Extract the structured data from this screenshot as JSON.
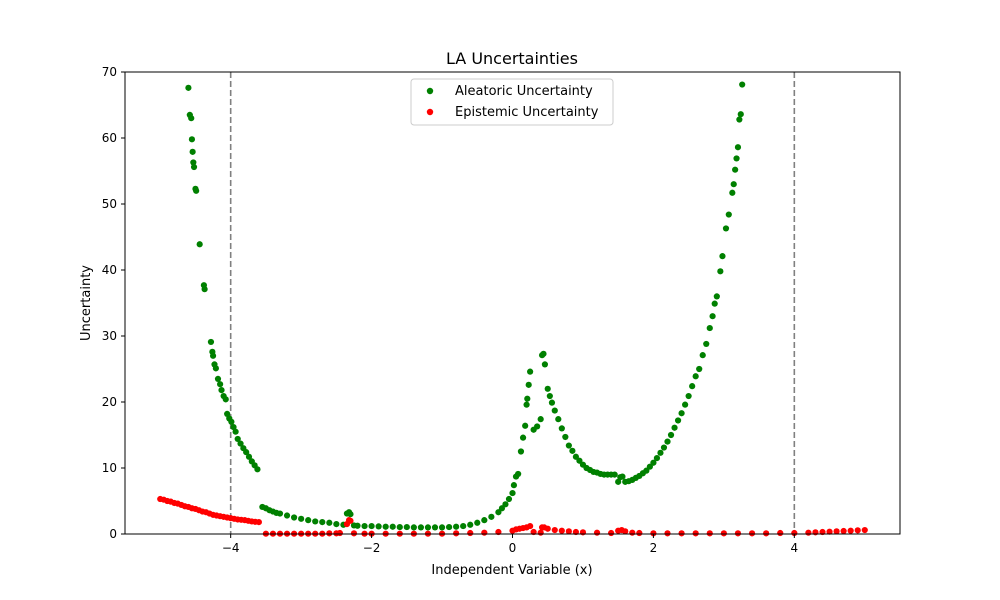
{
  "chart_data": {
    "type": "scatter",
    "title": "LA Uncertainties",
    "xlabel": "Independent Variable (x)",
    "ylabel": "Uncertainty",
    "xlim": [
      -5.5,
      5.5
    ],
    "ylim": [
      0,
      70
    ],
    "xticks": [
      -4,
      -2,
      0,
      2,
      4
    ],
    "xtick_labels": [
      "−4",
      "−2",
      "0",
      "2",
      "4"
    ],
    "yticks": [
      0,
      10,
      20,
      30,
      40,
      50,
      60,
      70
    ],
    "ytick_labels": [
      "0",
      "10",
      "20",
      "30",
      "40",
      "50",
      "60",
      "70"
    ],
    "vlines": [
      -4,
      4
    ],
    "grid": false,
    "legend_position": "top-center",
    "series": [
      {
        "name": "Aleatoric Uncertainty",
        "color": "#008000",
        "points": [
          [
            -4.6,
            67.6
          ],
          [
            -4.58,
            63.5
          ],
          [
            -4.56,
            63.0
          ],
          [
            -4.55,
            59.8
          ],
          [
            -4.54,
            57.9
          ],
          [
            -4.53,
            56.3
          ],
          [
            -4.52,
            55.6
          ],
          [
            -4.5,
            52.3
          ],
          [
            -4.49,
            52.0
          ],
          [
            -4.44,
            43.9
          ],
          [
            -4.38,
            37.7
          ],
          [
            -4.37,
            37.1
          ],
          [
            -4.28,
            29.1
          ],
          [
            -4.26,
            27.6
          ],
          [
            -4.25,
            27.0
          ],
          [
            -4.23,
            25.7
          ],
          [
            -4.21,
            25.1
          ],
          [
            -4.18,
            23.5
          ],
          [
            -4.15,
            22.7
          ],
          [
            -4.13,
            21.8
          ],
          [
            -4.1,
            20.9
          ],
          [
            -4.07,
            20.4
          ],
          [
            -4.05,
            18.2
          ],
          [
            -4.02,
            17.5
          ],
          [
            -3.99,
            17.0
          ],
          [
            -3.96,
            16.2
          ],
          [
            -3.93,
            15.5
          ],
          [
            -3.9,
            14.4
          ],
          [
            -3.86,
            13.7
          ],
          [
            -3.82,
            13.0
          ],
          [
            -3.78,
            12.4
          ],
          [
            -3.74,
            11.7
          ],
          [
            -3.7,
            11.0
          ],
          [
            -3.66,
            10.4
          ],
          [
            -3.62,
            9.8
          ],
          [
            -3.55,
            4.1
          ],
          [
            -3.5,
            3.9
          ],
          [
            -3.45,
            3.6
          ],
          [
            -3.4,
            3.4
          ],
          [
            -3.35,
            3.2
          ],
          [
            -3.3,
            3.1
          ],
          [
            -3.2,
            2.8
          ],
          [
            -3.1,
            2.5
          ],
          [
            -3.0,
            2.3
          ],
          [
            -2.9,
            2.1
          ],
          [
            -2.8,
            1.9
          ],
          [
            -2.7,
            1.8
          ],
          [
            -2.6,
            1.7
          ],
          [
            -2.5,
            1.5
          ],
          [
            -2.4,
            1.4
          ],
          [
            -2.35,
            3.1
          ],
          [
            -2.32,
            3.3
          ],
          [
            -2.3,
            3.0
          ],
          [
            -2.25,
            1.3
          ],
          [
            -2.2,
            1.25
          ],
          [
            -2.1,
            1.2
          ],
          [
            -2.0,
            1.2
          ],
          [
            -1.9,
            1.15
          ],
          [
            -1.8,
            1.1
          ],
          [
            -1.7,
            1.1
          ],
          [
            -1.6,
            1.05
          ],
          [
            -1.5,
            1.05
          ],
          [
            -1.4,
            1.0
          ],
          [
            -1.3,
            1.0
          ],
          [
            -1.2,
            1.0
          ],
          [
            -1.1,
            1.0
          ],
          [
            -1.0,
            1.0
          ],
          [
            -0.9,
            1.05
          ],
          [
            -0.8,
            1.1
          ],
          [
            -0.7,
            1.2
          ],
          [
            -0.6,
            1.4
          ],
          [
            -0.5,
            1.7
          ],
          [
            -0.4,
            2.1
          ],
          [
            -0.3,
            2.6
          ],
          [
            -0.2,
            3.3
          ],
          [
            -0.15,
            3.9
          ],
          [
            -0.1,
            4.5
          ],
          [
            -0.05,
            5.3
          ],
          [
            0.0,
            6.2
          ],
          [
            0.02,
            7.4
          ],
          [
            0.05,
            8.7
          ],
          [
            0.08,
            9.1
          ],
          [
            0.12,
            12.5
          ],
          [
            0.15,
            14.6
          ],
          [
            0.18,
            16.4
          ],
          [
            0.2,
            19.6
          ],
          [
            0.21,
            20.5
          ],
          [
            0.23,
            22.6
          ],
          [
            0.25,
            24.6
          ],
          [
            0.3,
            15.8
          ],
          [
            0.35,
            16.3
          ],
          [
            0.4,
            17.4
          ],
          [
            0.42,
            27.1
          ],
          [
            0.44,
            27.3
          ],
          [
            0.46,
            25.7
          ],
          [
            0.5,
            22.0
          ],
          [
            0.53,
            20.9
          ],
          [
            0.56,
            19.9
          ],
          [
            0.6,
            18.7
          ],
          [
            0.65,
            17.4
          ],
          [
            0.7,
            16.0
          ],
          [
            0.75,
            14.7
          ],
          [
            0.8,
            13.4
          ],
          [
            0.85,
            12.6
          ],
          [
            0.9,
            11.7
          ],
          [
            0.95,
            11.1
          ],
          [
            1.0,
            10.5
          ],
          [
            1.05,
            10.0
          ],
          [
            1.1,
            9.7
          ],
          [
            1.15,
            9.4
          ],
          [
            1.2,
            9.3
          ],
          [
            1.25,
            9.1
          ],
          [
            1.3,
            9.0
          ],
          [
            1.35,
            9.0
          ],
          [
            1.4,
            9.0
          ],
          [
            1.45,
            9.0
          ],
          [
            1.5,
            7.9
          ],
          [
            1.53,
            8.6
          ],
          [
            1.56,
            8.7
          ],
          [
            1.6,
            7.9
          ],
          [
            1.65,
            8.0
          ],
          [
            1.7,
            8.2
          ],
          [
            1.75,
            8.5
          ],
          [
            1.8,
            8.8
          ],
          [
            1.85,
            9.2
          ],
          [
            1.9,
            9.6
          ],
          [
            1.95,
            10.2
          ],
          [
            2.0,
            10.8
          ],
          [
            2.05,
            11.5
          ],
          [
            2.1,
            12.3
          ],
          [
            2.15,
            13.1
          ],
          [
            2.2,
            14.0
          ],
          [
            2.25,
            15.0
          ],
          [
            2.3,
            16.1
          ],
          [
            2.35,
            17.2
          ],
          [
            2.4,
            18.3
          ],
          [
            2.45,
            19.6
          ],
          [
            2.5,
            20.9
          ],
          [
            2.55,
            22.4
          ],
          [
            2.6,
            23.9
          ],
          [
            2.65,
            25.0
          ],
          [
            2.7,
            27.1
          ],
          [
            2.75,
            28.8
          ],
          [
            2.8,
            31.2
          ],
          [
            2.84,
            33.0
          ],
          [
            2.87,
            34.9
          ],
          [
            2.9,
            36.0
          ],
          [
            2.95,
            39.8
          ],
          [
            2.98,
            42.1
          ],
          [
            3.03,
            46.3
          ],
          [
            3.07,
            48.4
          ],
          [
            3.12,
            51.7
          ],
          [
            3.14,
            53.0
          ],
          [
            3.16,
            55.2
          ],
          [
            3.18,
            56.9
          ],
          [
            3.2,
            58.6
          ],
          [
            3.22,
            62.8
          ],
          [
            3.24,
            63.6
          ],
          [
            3.26,
            68.1
          ]
        ]
      },
      {
        "name": "Epistemic Uncertainty",
        "color": "#ff0000",
        "points": [
          [
            -5.0,
            5.3
          ],
          [
            -4.95,
            5.2
          ],
          [
            -4.9,
            5.0
          ],
          [
            -4.85,
            4.9
          ],
          [
            -4.8,
            4.7
          ],
          [
            -4.75,
            4.6
          ],
          [
            -4.7,
            4.4
          ],
          [
            -4.65,
            4.2
          ],
          [
            -4.6,
            4.1
          ],
          [
            -4.55,
            3.9
          ],
          [
            -4.5,
            3.8
          ],
          [
            -4.45,
            3.6
          ],
          [
            -4.4,
            3.4
          ],
          [
            -4.35,
            3.3
          ],
          [
            -4.3,
            3.1
          ],
          [
            -4.25,
            2.9
          ],
          [
            -4.2,
            2.8
          ],
          [
            -4.15,
            2.7
          ],
          [
            -4.1,
            2.6
          ],
          [
            -4.05,
            2.5
          ],
          [
            -4.0,
            2.4
          ],
          [
            -3.95,
            2.3
          ],
          [
            -3.9,
            2.2
          ],
          [
            -3.85,
            2.15
          ],
          [
            -3.8,
            2.1
          ],
          [
            -3.75,
            2.0
          ],
          [
            -3.7,
            1.9
          ],
          [
            -3.65,
            1.85
          ],
          [
            -3.6,
            1.8
          ],
          [
            -3.5,
            0.05
          ],
          [
            -3.4,
            0.05
          ],
          [
            -3.3,
            0.05
          ],
          [
            -3.2,
            0.05
          ],
          [
            -3.1,
            0.05
          ],
          [
            -3.0,
            0.05
          ],
          [
            -2.9,
            0.05
          ],
          [
            -2.8,
            0.05
          ],
          [
            -2.7,
            0.05
          ],
          [
            -2.6,
            0.1
          ],
          [
            -2.5,
            0.1
          ],
          [
            -2.45,
            0.15
          ],
          [
            -2.35,
            1.5
          ],
          [
            -2.32,
            2.1
          ],
          [
            -2.3,
            2.0
          ],
          [
            -2.25,
            0.1
          ],
          [
            -2.1,
            0.05
          ],
          [
            -2.0,
            0.05
          ],
          [
            -1.8,
            0.05
          ],
          [
            -1.6,
            0.05
          ],
          [
            -1.4,
            0.05
          ],
          [
            -1.2,
            0.05
          ],
          [
            -1.0,
            0.05
          ],
          [
            -0.8,
            0.1
          ],
          [
            -0.6,
            0.15
          ],
          [
            -0.4,
            0.2
          ],
          [
            -0.2,
            0.3
          ],
          [
            0.0,
            0.5
          ],
          [
            0.05,
            0.7
          ],
          [
            0.1,
            0.8
          ],
          [
            0.15,
            0.9
          ],
          [
            0.2,
            1.0
          ],
          [
            0.25,
            1.2
          ],
          [
            0.3,
            0.3
          ],
          [
            0.4,
            0.2
          ],
          [
            0.42,
            1.0
          ],
          [
            0.45,
            1.0
          ],
          [
            0.5,
            0.8
          ],
          [
            0.6,
            0.6
          ],
          [
            0.7,
            0.5
          ],
          [
            0.8,
            0.4
          ],
          [
            0.9,
            0.3
          ],
          [
            1.0,
            0.25
          ],
          [
            1.2,
            0.2
          ],
          [
            1.4,
            0.15
          ],
          [
            1.5,
            0.5
          ],
          [
            1.55,
            0.6
          ],
          [
            1.6,
            0.4
          ],
          [
            1.7,
            0.2
          ],
          [
            1.8,
            0.15
          ],
          [
            2.0,
            0.1
          ],
          [
            2.2,
            0.1
          ],
          [
            2.4,
            0.1
          ],
          [
            2.6,
            0.1
          ],
          [
            2.8,
            0.1
          ],
          [
            3.0,
            0.1
          ],
          [
            3.2,
            0.1
          ],
          [
            3.4,
            0.1
          ],
          [
            3.6,
            0.1
          ],
          [
            3.8,
            0.15
          ],
          [
            4.0,
            0.15
          ],
          [
            4.2,
            0.2
          ],
          [
            4.3,
            0.25
          ],
          [
            4.4,
            0.3
          ],
          [
            4.5,
            0.35
          ],
          [
            4.6,
            0.4
          ],
          [
            4.7,
            0.45
          ],
          [
            4.8,
            0.5
          ],
          [
            4.9,
            0.55
          ],
          [
            5.0,
            0.6
          ]
        ]
      }
    ]
  }
}
